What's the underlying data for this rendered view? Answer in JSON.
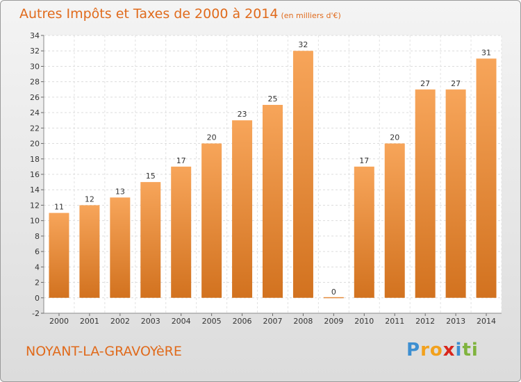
{
  "header": {
    "title": "Autres Impôts et Taxes de 2000 à 2014",
    "unit": "(en milliers d'€)"
  },
  "footer": {
    "commune": "NOYANT-LA-GRAVOYèRE",
    "brand": "Proxiti",
    "brand_letters": [
      {
        "char": "P",
        "color": "#3d8fd1"
      },
      {
        "char": "r",
        "color": "#f2a11d"
      },
      {
        "char": "o",
        "color": "#f2a11d"
      },
      {
        "char": "x",
        "color": "#d9261c"
      },
      {
        "char": "i",
        "color": "#3d8fd1"
      },
      {
        "char": "t",
        "color": "#7fb33d"
      },
      {
        "char": "i",
        "color": "#7fb33d"
      }
    ]
  },
  "chart_data": {
    "type": "bar",
    "title": "Autres Impôts et Taxes de 2000 à 2014",
    "subtitle": "(en milliers d'€)",
    "categories": [
      "2000",
      "2001",
      "2002",
      "2003",
      "2004",
      "2005",
      "2006",
      "2007",
      "2008",
      "2009",
      "2010",
      "2011",
      "2012",
      "2013",
      "2014"
    ],
    "values": [
      11,
      12,
      13,
      15,
      17,
      20,
      23,
      25,
      32,
      0,
      17,
      20,
      27,
      27,
      31
    ],
    "ylim": [
      -2,
      34
    ],
    "yticks": [
      -2,
      0,
      2,
      4,
      6,
      8,
      10,
      12,
      14,
      16,
      18,
      20,
      22,
      24,
      26,
      28,
      30,
      32,
      34
    ],
    "grid": true,
    "bar_color_top": "#f7a55a",
    "bar_color_bottom": "#d2721f",
    "xlabel": "",
    "ylabel": ""
  }
}
